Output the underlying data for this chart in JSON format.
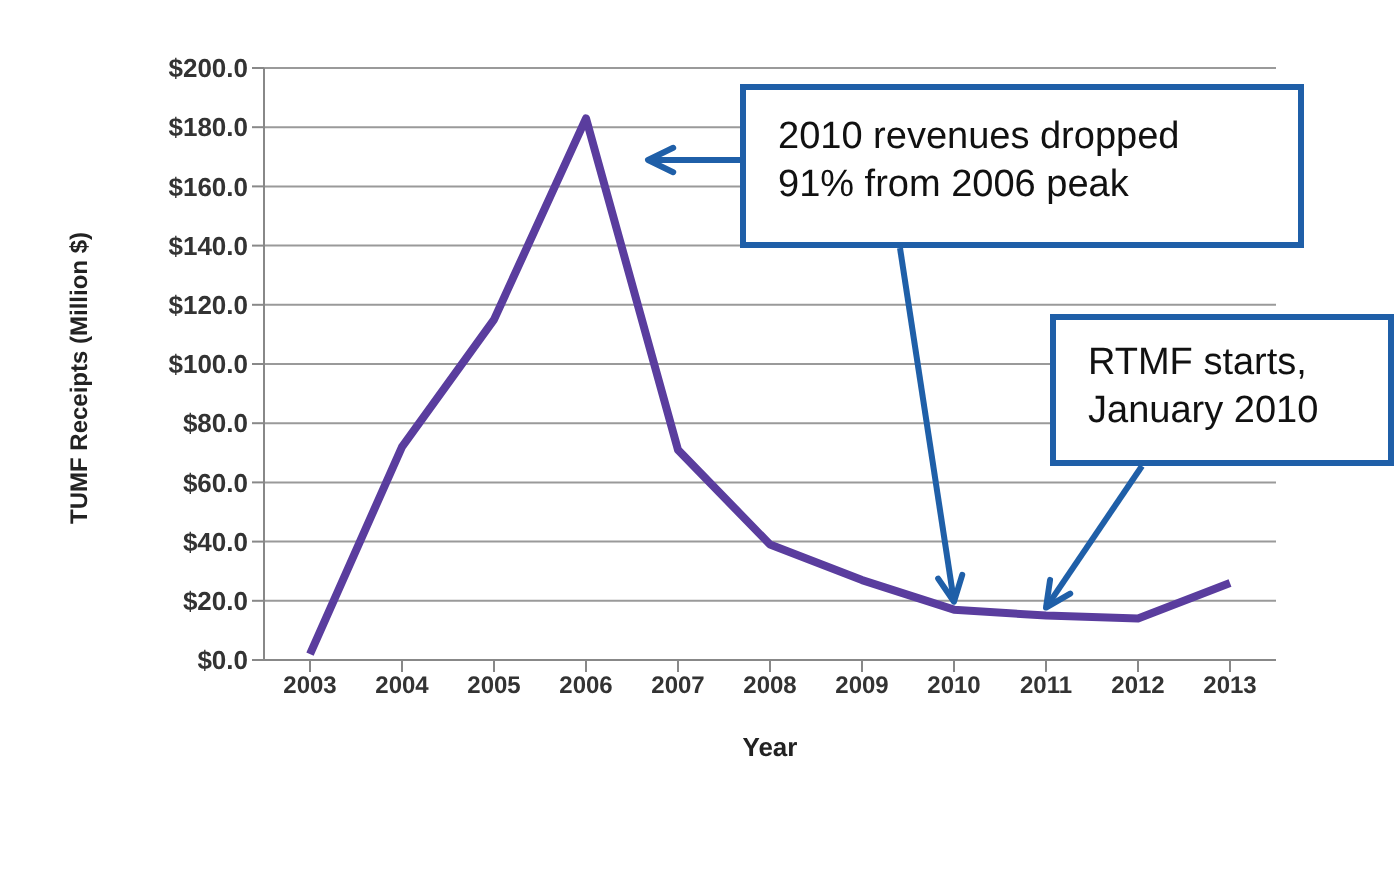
{
  "chart_data": {
    "type": "line",
    "xlabel": "Year",
    "ylabel": "TUMF Receipts (Million $)",
    "categories": [
      "2003",
      "2004",
      "2005",
      "2006",
      "2007",
      "2008",
      "2009",
      "2010",
      "2011",
      "2012",
      "2013"
    ],
    "series": [
      {
        "color": "#5a3d9e",
        "values": [
          2,
          72,
          115,
          183,
          71,
          39,
          27,
          17,
          15,
          14,
          26
        ]
      }
    ],
    "ylim": [
      0,
      200
    ],
    "yticks": [
      {
        "value": 0,
        "label": "$0.0"
      },
      {
        "value": 20,
        "label": "$20.0"
      },
      {
        "value": 40,
        "label": "$40.0"
      },
      {
        "value": 60,
        "label": "$60.0"
      },
      {
        "value": 80,
        "label": "$80.0"
      },
      {
        "value": 100,
        "label": "$100.0"
      },
      {
        "value": 120,
        "label": "$120.0"
      },
      {
        "value": 140,
        "label": "$140.0"
      },
      {
        "value": 160,
        "label": "$160.0"
      },
      {
        "value": 180,
        "label": "$180.0"
      },
      {
        "value": 200,
        "label": "$200.0"
      }
    ],
    "grid": "y",
    "marker": "none",
    "line_style": "solid",
    "annotations": [
      {
        "text": "2010 revenues dropped 91% from 2006 peak",
        "x": "2010",
        "y": 17
      },
      {
        "text": "RTMF starts, January 2010",
        "x": "2011",
        "y": 15
      }
    ]
  }
}
